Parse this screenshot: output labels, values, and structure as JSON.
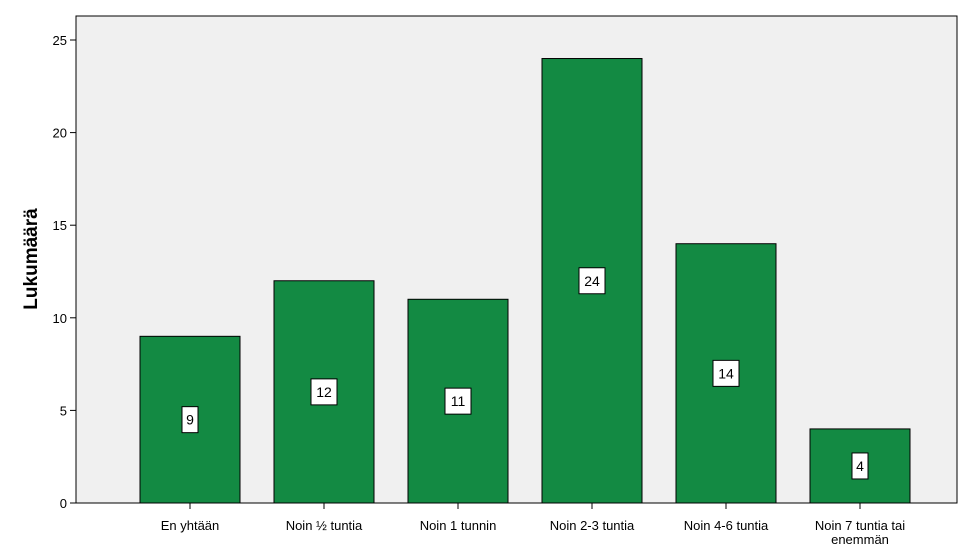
{
  "chart_data": {
    "type": "bar",
    "title": "",
    "xlabel": "",
    "ylabel": "Lukumäärä",
    "categories": [
      [
        "En yhtään"
      ],
      [
        "Noin ½ tuntia"
      ],
      [
        "Noin 1 tunnin"
      ],
      [
        "Noin 2-3 tuntia"
      ],
      [
        "Noin 4-6 tuntia"
      ],
      [
        "Noin 7 tuntia tai",
        "enemmän"
      ]
    ],
    "values": [
      9,
      12,
      11,
      24,
      14,
      4
    ],
    "data_labels": [
      "9",
      "12",
      "11",
      "24",
      "14",
      "4"
    ],
    "ylim": [
      0,
      25
    ],
    "yticks": [
      "0",
      "5",
      "10",
      "15",
      "20",
      "25"
    ],
    "grid": false,
    "legend": "none",
    "colors": {
      "bar_fill": "#138a43",
      "bar_stroke": "#000000",
      "plot_background": "#f0f0f0",
      "axis": "#000000"
    }
  }
}
